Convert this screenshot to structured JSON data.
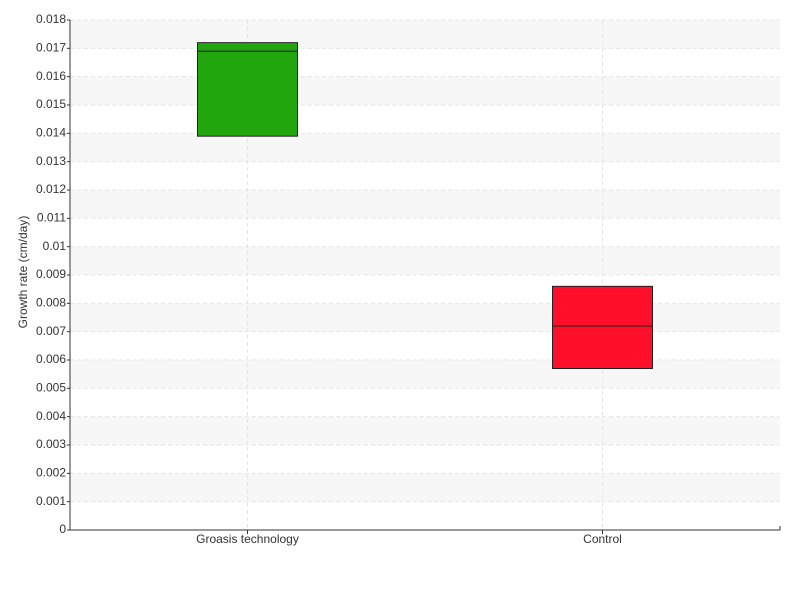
{
  "chart_data": {
    "type": "box",
    "y_label": "Growth rate (cm/day)",
    "categories": [
      "Groasis technology",
      "Control"
    ],
    "boxes": [
      {
        "q1": 0.0139,
        "median": 0.0169,
        "q3": 0.0172,
        "color": "#22a60e"
      },
      {
        "q1": 0.0057,
        "median": 0.0072,
        "q3": 0.0086,
        "color": "#ff0f2a"
      }
    ],
    "ylim": [
      0,
      0.018
    ],
    "yticks": [
      0,
      0.001,
      0.002,
      0.003,
      0.004,
      0.005,
      0.006,
      0.007,
      0.008,
      0.009,
      0.01,
      0.011,
      0.012,
      0.013,
      0.014,
      0.015,
      0.016,
      0.017,
      0.018
    ],
    "grid": true
  }
}
